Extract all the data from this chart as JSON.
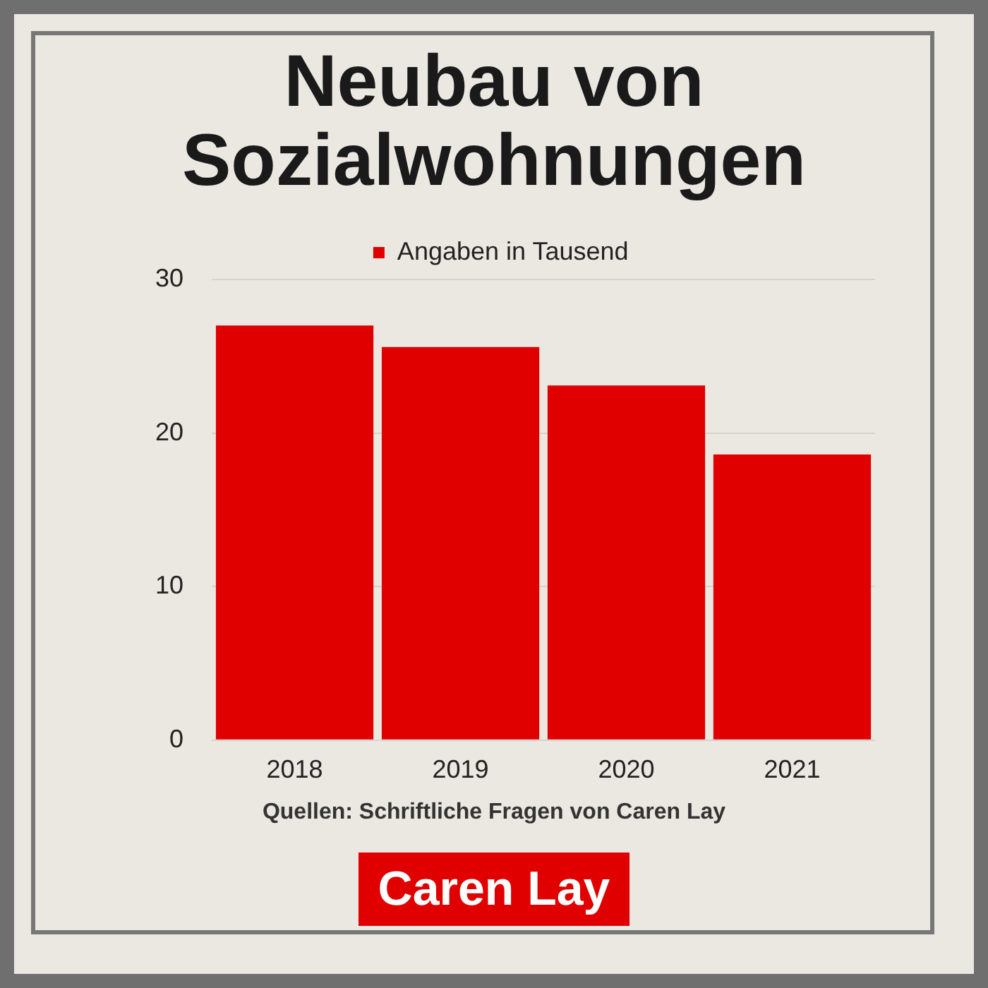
{
  "chart_data": {
    "type": "bar",
    "title": "Neubau von Sozialwohnungen",
    "categories": [
      "2018",
      "2019",
      "2020",
      "2021"
    ],
    "series": [
      {
        "name": "Angaben in Tausend",
        "color": "#e00000",
        "values": [
          27.0,
          25.6,
          23.1,
          18.6
        ]
      }
    ],
    "ylim": [
      0,
      30
    ],
    "yticks": [
      0,
      10,
      20,
      30
    ],
    "grid": "y",
    "legend": "top",
    "annotations": [
      "Quellen: Schriftliche Fragen von Caren Lay",
      "Caren Lay"
    ]
  }
}
